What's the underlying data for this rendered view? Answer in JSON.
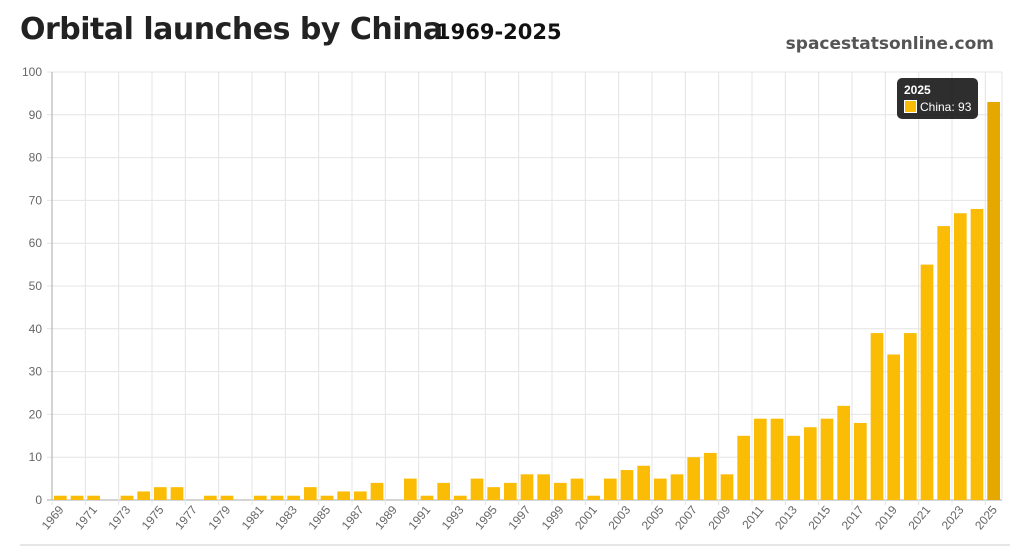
{
  "chart_data": {
    "type": "bar",
    "title": "Orbital launches by China",
    "subtitle": "1969-2025",
    "source": "spacestatsonline.com",
    "xlabel": "",
    "ylabel": "",
    "ylim": [
      0,
      100
    ],
    "yticks": [
      0,
      10,
      20,
      30,
      40,
      50,
      60,
      70,
      80,
      90,
      100
    ],
    "grid": true,
    "bar_color": "#fbbc05",
    "highlight_color": "#e5a800",
    "categories": [
      "1969",
      "1970",
      "1971",
      "1972",
      "1973",
      "1974",
      "1975",
      "1976",
      "1977",
      "1978",
      "1979",
      "1980",
      "1981",
      "1982",
      "1983",
      "1984",
      "1985",
      "1986",
      "1987",
      "1988",
      "1989",
      "1990",
      "1991",
      "1992",
      "1993",
      "1994",
      "1995",
      "1996",
      "1997",
      "1998",
      "1999",
      "2000",
      "2001",
      "2002",
      "2003",
      "2004",
      "2005",
      "2006",
      "2007",
      "2008",
      "2009",
      "2010",
      "2011",
      "2012",
      "2013",
      "2014",
      "2015",
      "2016",
      "2017",
      "2018",
      "2019",
      "2020",
      "2021",
      "2022",
      "2023",
      "2024",
      "2025"
    ],
    "series": [
      {
        "name": "China",
        "values": [
          1,
          1,
          1,
          0,
          1,
          2,
          3,
          3,
          0,
          1,
          1,
          0,
          1,
          1,
          1,
          3,
          1,
          2,
          2,
          4,
          0,
          5,
          1,
          4,
          1,
          5,
          3,
          4,
          6,
          6,
          4,
          5,
          1,
          5,
          7,
          8,
          5,
          6,
          10,
          11,
          6,
          15,
          19,
          19,
          15,
          17,
          19,
          22,
          18,
          39,
          34,
          39,
          55,
          64,
          67,
          68,
          93
        ]
      }
    ],
    "tooltip": {
      "title": "2025",
      "label": "China: 93"
    }
  }
}
